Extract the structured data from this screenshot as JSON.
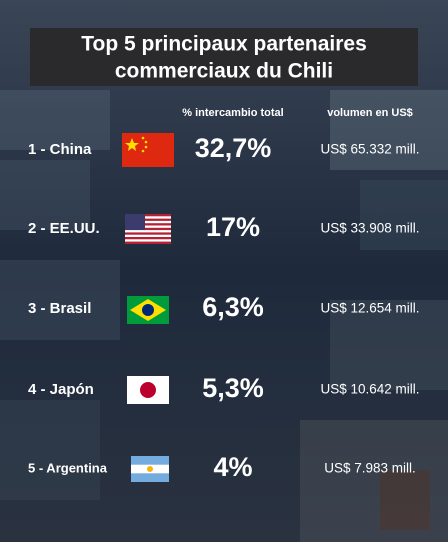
{
  "header": {
    "title_lines": [
      "Top 5 principaux partenaires",
      "commerciaux du Chili"
    ]
  },
  "table": {
    "columns": [
      "% intercambio total",
      "volumen en US$"
    ],
    "rows": [
      [
        "1 - China",
        "32,7%",
        "US$ 65.332 mill."
      ],
      [
        "2 - EE.UU.",
        "17%",
        "US$ 33.908 mill."
      ],
      [
        "3 - Brasil",
        "6,3%",
        "US$ 12.654 mill."
      ],
      [
        "4 - Japón",
        "5,3%",
        "US$ 10.642 mill."
      ],
      [
        "5 - Argentina",
        "4%",
        "US$ 7.983 mill."
      ]
    ]
  }
}
